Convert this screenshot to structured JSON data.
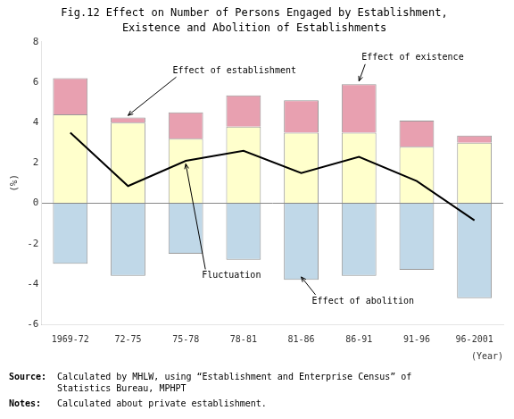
{
  "chart_data": {
    "type": "bar",
    "title": "Fig.12 Effect on Number of Persons Engaged by Establishment,",
    "subtitle": "Existence and Abolition of Establishments",
    "x_label": "(Year)",
    "y_label": "(%)",
    "categories": [
      "1969-72",
      "72-75",
      "75-78",
      "78-81",
      "81-86",
      "86-91",
      "91-96",
      "96-2001"
    ],
    "series": [
      {
        "type": "bar",
        "color": "#ffffcc",
        "values": [
          4.4,
          4.0,
          3.2,
          3.8,
          3.5,
          3.5,
          2.8,
          3.0
        ]
      },
      {
        "type": "bar",
        "color": "#e8a0b0",
        "values": [
          1.8,
          0.25,
          1.3,
          1.55,
          1.6,
          2.4,
          1.3,
          0.35
        ]
      },
      {
        "type": "bar",
        "color": "#c0d8e8",
        "values": [
          -3.0,
          -3.6,
          -2.5,
          -2.8,
          -3.8,
          -3.6,
          -3.3,
          -4.7
        ]
      },
      {
        "type": "line",
        "color": "#000000",
        "values": [
          3.5,
          0.85,
          2.1,
          2.6,
          1.5,
          2.3,
          1.1,
          -0.85
        ]
      }
    ],
    "stacked": true,
    "grid": false,
    "ylim": [
      -6,
      8
    ],
    "yticks": [
      -6,
      -4,
      -2,
      0,
      2,
      4,
      6,
      8
    ],
    "annotations": [
      {
        "text": "Effect of establishment",
        "x": "72-75",
        "y": 4.35
      },
      {
        "text": "Effect of existence",
        "x": "86-91",
        "y": 6.05
      },
      {
        "text": "Fluctuation",
        "x": "75-78",
        "y": 1.95
      },
      {
        "text": "Effect of abolition",
        "x": "81-86",
        "y": -3.65
      }
    ],
    "notes": [
      {
        "label": "Source:",
        "lines": [
          "Calculated by MHLW, using “Establishment and Enterprise Census” of",
          "Statistics Bureau, MPHPT"
        ]
      },
      {
        "label": "Notes:",
        "lines": [
          "Calculated about private establishment."
        ]
      }
    ]
  }
}
